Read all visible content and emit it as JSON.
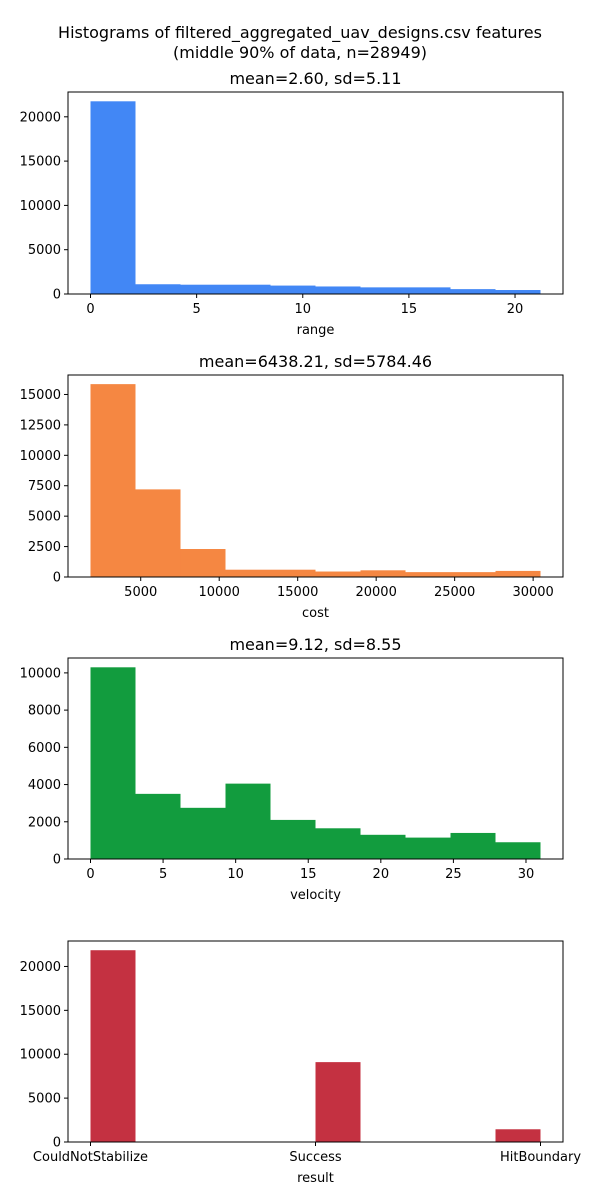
{
  "figure": {
    "title_line1": "Histograms of filtered_aggregated_uav_designs.csv features",
    "title_line2": "(middle 90% of data, n=28949)"
  },
  "chart_data": [
    {
      "type": "bar",
      "title": "mean=2.60, sd=5.11",
      "xlabel": "range",
      "ylabel": "",
      "color": "#4287f5",
      "bin_edges": [
        0,
        2.12,
        4.24,
        6.36,
        8.48,
        10.6,
        12.72,
        14.84,
        16.96,
        19.08,
        21.2
      ],
      "counts": [
        21750,
        1100,
        1050,
        1050,
        950,
        850,
        750,
        750,
        550,
        450
      ],
      "xlim": [
        -1.06,
        22.26
      ],
      "ylim": [
        0,
        22800
      ],
      "xticks": [
        0,
        5,
        10,
        15,
        20
      ],
      "xtick_labels": [
        "0",
        "5",
        "10",
        "15",
        "20"
      ],
      "yticks": [
        0,
        5000,
        10000,
        15000,
        20000
      ],
      "ytick_labels": [
        "0",
        "5000",
        "10000",
        "15000",
        "20000"
      ]
    },
    {
      "type": "bar",
      "title": "mean=6438.21, sd=5784.46",
      "xlabel": "cost",
      "ylabel": "",
      "color": "#f58742",
      "bin_edges": [
        1800,
        4667,
        7534,
        10401,
        13268,
        16135,
        19002,
        21869,
        24736,
        27603,
        30470
      ],
      "counts": [
        15850,
        7200,
        2300,
        600,
        600,
        450,
        550,
        400,
        400,
        500
      ],
      "xlim": [
        367,
        31903
      ],
      "ylim": [
        0,
        16600
      ],
      "xticks": [
        5000,
        10000,
        15000,
        20000,
        25000,
        30000
      ],
      "xtick_labels": [
        "5000",
        "10000",
        "15000",
        "20000",
        "25000",
        "30000"
      ],
      "yticks": [
        0,
        2500,
        5000,
        7500,
        10000,
        12500,
        15000
      ],
      "ytick_labels": [
        "0",
        "2500",
        "5000",
        "7500",
        "10000",
        "12500",
        "15000"
      ]
    },
    {
      "type": "bar",
      "title": "mean=9.12, sd=8.55",
      "xlabel": "velocity",
      "ylabel": "",
      "color": "#129c3e",
      "bin_edges": [
        0,
        3.1,
        6.2,
        9.3,
        12.4,
        15.5,
        18.6,
        21.7,
        24.8,
        27.9,
        31
      ],
      "counts": [
        10300,
        3500,
        2750,
        4050,
        2100,
        1650,
        1300,
        1150,
        1400,
        900
      ],
      "xlim": [
        -1.55,
        32.55
      ],
      "ylim": [
        0,
        10800
      ],
      "xticks": [
        0,
        5,
        10,
        15,
        20,
        25,
        30
      ],
      "xtick_labels": [
        "0",
        "5",
        "10",
        "15",
        "20",
        "25",
        "30"
      ],
      "yticks": [
        0,
        2000,
        4000,
        6000,
        8000,
        10000
      ],
      "ytick_labels": [
        "0",
        "2000",
        "4000",
        "6000",
        "8000",
        "10000"
      ]
    },
    {
      "type": "bar",
      "title": "",
      "xlabel": "result",
      "ylabel": "",
      "color": "#c43141",
      "bin_edges": [
        0,
        0.2,
        0.4,
        0.6,
        0.8,
        1.0,
        1.2,
        1.4,
        1.6,
        1.8,
        2.0
      ],
      "counts": [
        21850,
        0,
        0,
        0,
        0,
        9100,
        0,
        0,
        0,
        1450
      ],
      "xlim": [
        -0.1,
        2.1
      ],
      "ylim": [
        0,
        22900
      ],
      "xticks": [
        0,
        1,
        2
      ],
      "xtick_labels": [
        "CouldNotStabilize",
        "Success",
        "HitBoundary"
      ],
      "yticks": [
        0,
        5000,
        10000,
        15000,
        20000
      ],
      "ytick_labels": [
        "0",
        "5000",
        "10000",
        "15000",
        "20000"
      ]
    }
  ]
}
